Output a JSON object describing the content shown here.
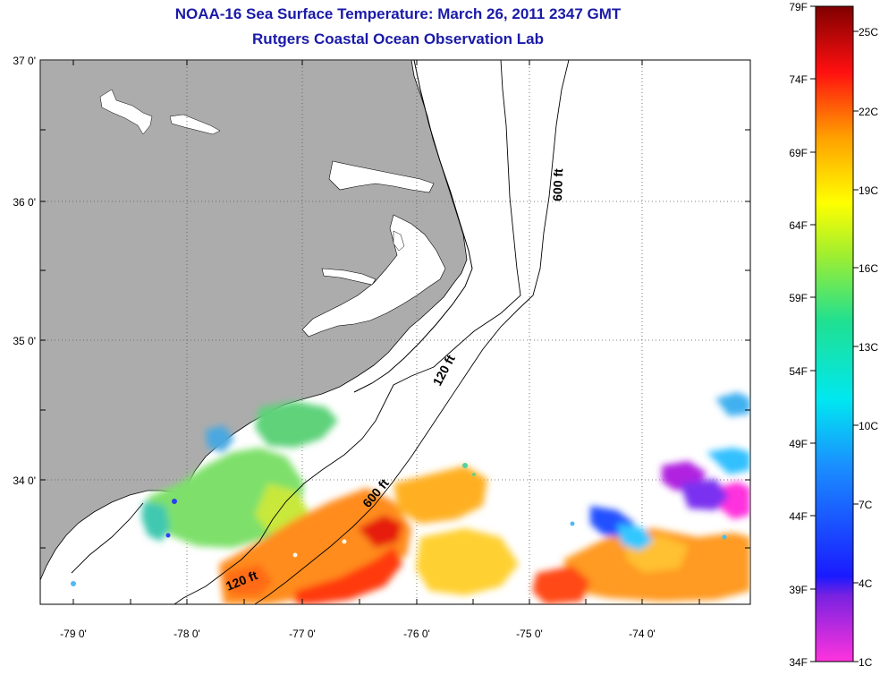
{
  "header": {
    "title": "NOAA-16 Sea Surface Temperature:  March 26, 2011 2347 GMT",
    "subtitle": "Rutgers Coastal Ocean Observation Lab"
  },
  "map": {
    "lat_labels": [
      "37 0'",
      "36 0'",
      "35 0'",
      "34 0'"
    ],
    "lon_labels": [
      "-79 0'",
      "-78 0'",
      "-77 0'",
      "-76 0'",
      "-75 0'",
      "-74 0'"
    ],
    "contour_labels": [
      "600 ft",
      "120 ft",
      "600 ft",
      "120 ft"
    ],
    "land_color": "#acacac"
  },
  "colorbar": {
    "fahrenheit_labels": [
      "79F",
      "74F",
      "69F",
      "64F",
      "59F",
      "54F",
      "49F",
      "44F",
      "39F",
      "34F"
    ],
    "celsius_labels": [
      "25C",
      "22C",
      "19C",
      "16C",
      "13C",
      "10C",
      "7C",
      "4C",
      "1C"
    ]
  }
}
